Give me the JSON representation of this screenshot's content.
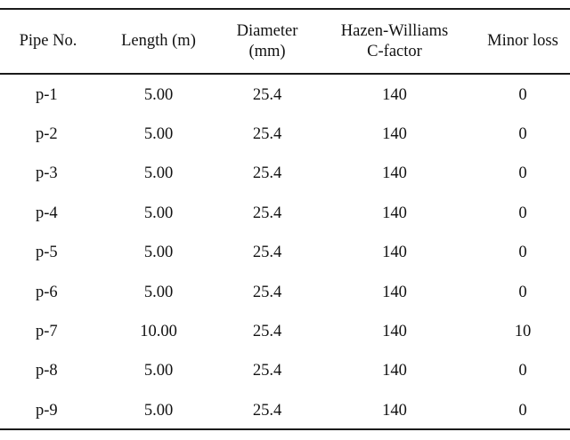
{
  "table": {
    "columns": [
      "Pipe No.",
      "Length (m)",
      "Diameter\n(mm)",
      "Hazen-Williams\nC-factor",
      "Minor loss"
    ],
    "rows": [
      [
        "p-1",
        "5.00",
        "25.4",
        "140",
        "0"
      ],
      [
        "p-2",
        "5.00",
        "25.4",
        "140",
        "0"
      ],
      [
        "p-3",
        "5.00",
        "25.4",
        "140",
        "0"
      ],
      [
        "p-4",
        "5.00",
        "25.4",
        "140",
        "0"
      ],
      [
        "p-5",
        "5.00",
        "25.4",
        "140",
        "0"
      ],
      [
        "p-6",
        "5.00",
        "25.4",
        "140",
        "0"
      ],
      [
        "p-7",
        "10.00",
        "25.4",
        "140",
        "10"
      ],
      [
        "p-8",
        "5.00",
        "25.4",
        "140",
        "0"
      ],
      [
        "p-9",
        "5.00",
        "25.4",
        "140",
        "0"
      ]
    ]
  }
}
